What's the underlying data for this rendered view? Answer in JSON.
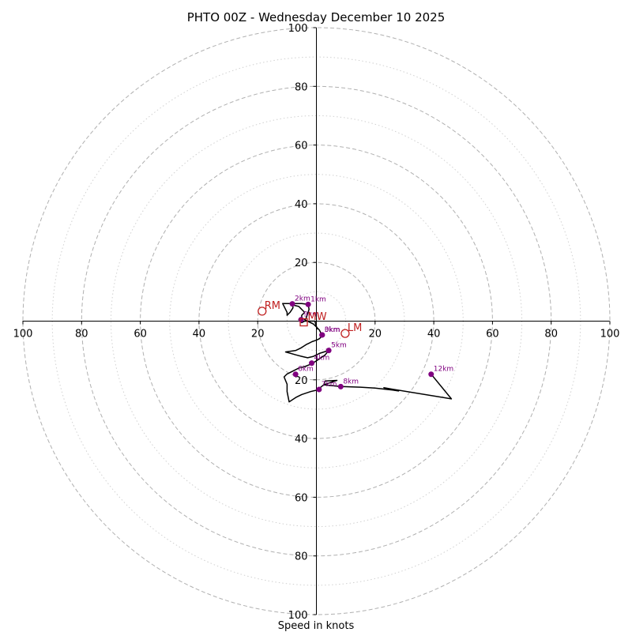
{
  "chart_data": {
    "type": "hodograph",
    "title": "PHTO 00Z - Wednesday December 10 2025",
    "xlabel": "Speed in knots",
    "axis_range": [
      -100,
      100
    ],
    "rings_major": [
      20,
      40,
      60,
      80,
      100
    ],
    "rings_minor": [
      10,
      30,
      50,
      70,
      90
    ],
    "ticks": {
      "x_left": [
        "100",
        "80",
        "60",
        "40",
        "20"
      ],
      "x_right": [
        "20",
        "40",
        "60",
        "80",
        "100"
      ],
      "y_top": [
        "100",
        "80",
        "60",
        "40",
        "20"
      ],
      "y_bottom": [
        "20",
        "40",
        "60",
        "80",
        "100"
      ]
    },
    "trace": [
      [
        0.3,
        -2.8
      ],
      [
        -0.5,
        0
      ],
      [
        -4,
        0
      ],
      [
        -5,
        -0.5
      ],
      [
        -6,
        0.5
      ],
      [
        -5,
        1
      ],
      [
        -5,
        2
      ],
      [
        -4,
        3
      ],
      [
        -5,
        4
      ],
      [
        -5.5,
        4.5
      ],
      [
        -6,
        5
      ],
      [
        -8,
        5.5
      ],
      [
        -8,
        4.5
      ],
      [
        -9,
        3
      ],
      [
        -10,
        2
      ],
      [
        -10,
        3
      ],
      [
        -11.5,
        6
      ],
      [
        -8,
        6
      ],
      [
        -5,
        6
      ],
      [
        -2.8,
        5.7
      ],
      [
        -2.5,
        4
      ],
      [
        -3.5,
        1
      ],
      [
        -4,
        0.5
      ],
      [
        -3,
        0
      ],
      [
        -2,
        -0.5
      ],
      [
        -1,
        -1
      ],
      [
        0,
        -2
      ],
      [
        1,
        -3
      ],
      [
        1.5,
        -4
      ],
      [
        2,
        -4.5
      ],
      [
        2,
        -5
      ],
      [
        1,
        -6
      ],
      [
        0,
        -6.5
      ],
      [
        -1.5,
        -7
      ],
      [
        -2.5,
        -7.5
      ],
      [
        -3.5,
        -8
      ],
      [
        -5,
        -9
      ],
      [
        -6,
        -9.5
      ],
      [
        -7,
        -10
      ],
      [
        -10.5,
        -10.5
      ],
      [
        -7,
        -11.5
      ],
      [
        -5,
        -12
      ],
      [
        -3,
        -12.5
      ],
      [
        -1,
        -12
      ],
      [
        1,
        -11
      ],
      [
        4.2,
        -10
      ],
      [
        3,
        -11.5
      ],
      [
        0,
        -13.5
      ],
      [
        -1.5,
        -14.5
      ],
      [
        -4,
        -15.5
      ],
      [
        -6,
        -16
      ],
      [
        -8,
        -17
      ],
      [
        -10,
        -18
      ],
      [
        -11,
        -19
      ],
      [
        -10,
        -21.5
      ],
      [
        -10,
        -24
      ],
      [
        -9.3,
        -27.5
      ],
      [
        -7,
        -26
      ],
      [
        -5,
        -25
      ],
      [
        -2,
        -24
      ],
      [
        0.9,
        -23.3
      ],
      [
        1.5,
        -22.5
      ],
      [
        2.5,
        -21.7
      ],
      [
        7,
        -20.2
      ],
      [
        3,
        -20.4
      ],
      [
        2.5,
        -21.7
      ],
      [
        8.3,
        -22.3
      ],
      [
        15,
        -22.5
      ],
      [
        20,
        -22.8
      ],
      [
        26,
        -23.5
      ],
      [
        28,
        -23.8
      ],
      [
        23,
        -22.7
      ],
      [
        26,
        -23.2
      ],
      [
        46,
        -26.5
      ],
      [
        39.1,
        -18.1
      ]
    ],
    "height_markers": [
      {
        "label": "0km",
        "u": 2,
        "v": -4.7
      },
      {
        "label": "1km",
        "u": -2.8,
        "v": 5.7
      },
      {
        "label": "2km",
        "u": -8.2,
        "v": 5.9
      },
      {
        "label": "3km",
        "u": 1.9,
        "v": -4.7
      },
      {
        "label": "4km",
        "u": -1.6,
        "v": -14.3
      },
      {
        "label": "5km",
        "u": 4.2,
        "v": -10
      },
      {
        "label": "6km",
        "u": -7.1,
        "v": -18.1
      },
      {
        "label": "7km",
        "u": 0.9,
        "v": -23.3
      },
      {
        "label": "8km",
        "u": 8.3,
        "v": -22.3
      },
      {
        "label": "9km",
        "u": -5.2,
        "v": 0.5
      },
      {
        "label": "12km",
        "u": 39.1,
        "v": -18.1
      }
    ],
    "motion_markers": [
      {
        "label": "RM",
        "u": -18.5,
        "v": 3.4,
        "shape": "circle"
      },
      {
        "label": "LM",
        "u": 9.8,
        "v": -4.2,
        "shape": "circle"
      },
      {
        "label": "MW",
        "u": -4.3,
        "v": -0.4,
        "shape": "square"
      }
    ],
    "colors": {
      "trace": "#000000",
      "height_marker": "#800080",
      "motion": "#c02020",
      "grid": "#b0b0b0"
    }
  }
}
